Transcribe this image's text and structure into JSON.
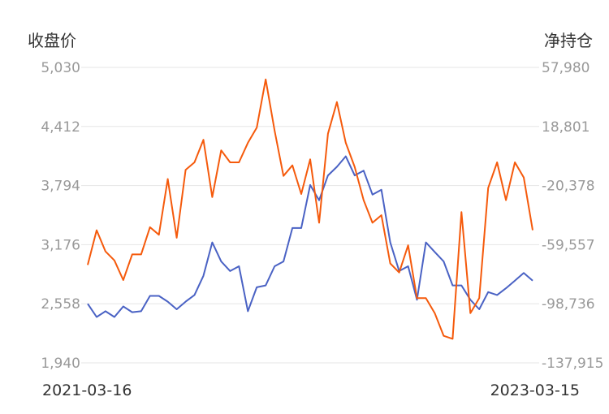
{
  "chart_data": {
    "type": "line",
    "left_axis": {
      "title": "收盘价",
      "ticks": [
        "5,030",
        "4,412",
        "3,794",
        "3,176",
        "2,558",
        "1,940"
      ],
      "ylim": [
        1940,
        5030
      ]
    },
    "right_axis": {
      "title": "净持仓",
      "ticks": [
        "57,980",
        "18,801",
        "-20,378",
        "-59,557",
        "-98,736",
        "-137,915"
      ],
      "ylim": [
        -137915,
        57980
      ]
    },
    "x_range": [
      "2021-03-16",
      "2023-03-15"
    ],
    "grid": true,
    "colors": {
      "close": "#4a62c4",
      "net": "#f55a0c",
      "grid": "#e6e6e6",
      "tick": "#999999"
    },
    "series": [
      {
        "axis": "left",
        "color": "#4a62c4",
        "x": [
          0,
          0.02,
          0.04,
          0.06,
          0.08,
          0.1,
          0.12,
          0.14,
          0.16,
          0.18,
          0.2,
          0.22,
          0.24,
          0.26,
          0.28,
          0.3,
          0.32,
          0.34,
          0.36,
          0.38,
          0.4,
          0.42,
          0.44,
          0.46,
          0.48,
          0.5,
          0.52,
          0.54,
          0.56,
          0.58,
          0.6,
          0.62,
          0.64,
          0.66,
          0.68,
          0.7,
          0.72,
          0.74,
          0.76,
          0.78,
          0.8,
          0.82,
          0.84,
          0.86,
          0.88,
          0.9,
          0.92,
          0.94,
          0.96,
          0.98,
          1
        ],
        "values": [
          2558,
          2420,
          2480,
          2420,
          2530,
          2470,
          2480,
          2640,
          2640,
          2580,
          2500,
          2580,
          2650,
          2850,
          3200,
          3000,
          2900,
          2950,
          2480,
          2730,
          2750,
          2950,
          3000,
          3350,
          3350,
          3800,
          3640,
          3900,
          3990,
          4100,
          3900,
          3950,
          3700,
          3750,
          3200,
          2900,
          2950,
          2600,
          3200,
          3100,
          3000,
          2750,
          2750,
          2600,
          2500,
          2680,
          2650,
          2720,
          2800,
          2880,
          2800
        ]
      },
      {
        "axis": "right",
        "color": "#f55a0c",
        "x": [
          0,
          0.02,
          0.04,
          0.06,
          0.08,
          0.1,
          0.12,
          0.14,
          0.16,
          0.18,
          0.2,
          0.22,
          0.24,
          0.26,
          0.28,
          0.3,
          0.32,
          0.34,
          0.36,
          0.38,
          0.4,
          0.42,
          0.44,
          0.46,
          0.48,
          0.5,
          0.52,
          0.54,
          0.56,
          0.58,
          0.6,
          0.62,
          0.64,
          0.66,
          0.68,
          0.7,
          0.72,
          0.74,
          0.76,
          0.78,
          0.8,
          0.82,
          0.84,
          0.86,
          0.88,
          0.9,
          0.92,
          0.94,
          0.96,
          0.98,
          1
        ],
        "values": [
          -73000,
          -50000,
          -64000,
          -70000,
          -83000,
          -66000,
          -66000,
          -48000,
          -53000,
          -16000,
          -55000,
          -10000,
          -5000,
          10000,
          -28000,
          3000,
          -5000,
          -5000,
          8000,
          18000,
          50000,
          16000,
          -14000,
          -7000,
          -26000,
          -3000,
          -45000,
          14000,
          35000,
          8000,
          -8000,
          -30000,
          -45000,
          -40000,
          -72000,
          -78000,
          -60000,
          -95000,
          -95000,
          -105000,
          -120000,
          -122000,
          -38000,
          -105000,
          -95000,
          -22000,
          -5000,
          -30000,
          -5000,
          -15000,
          -50000
        ]
      }
    ]
  }
}
